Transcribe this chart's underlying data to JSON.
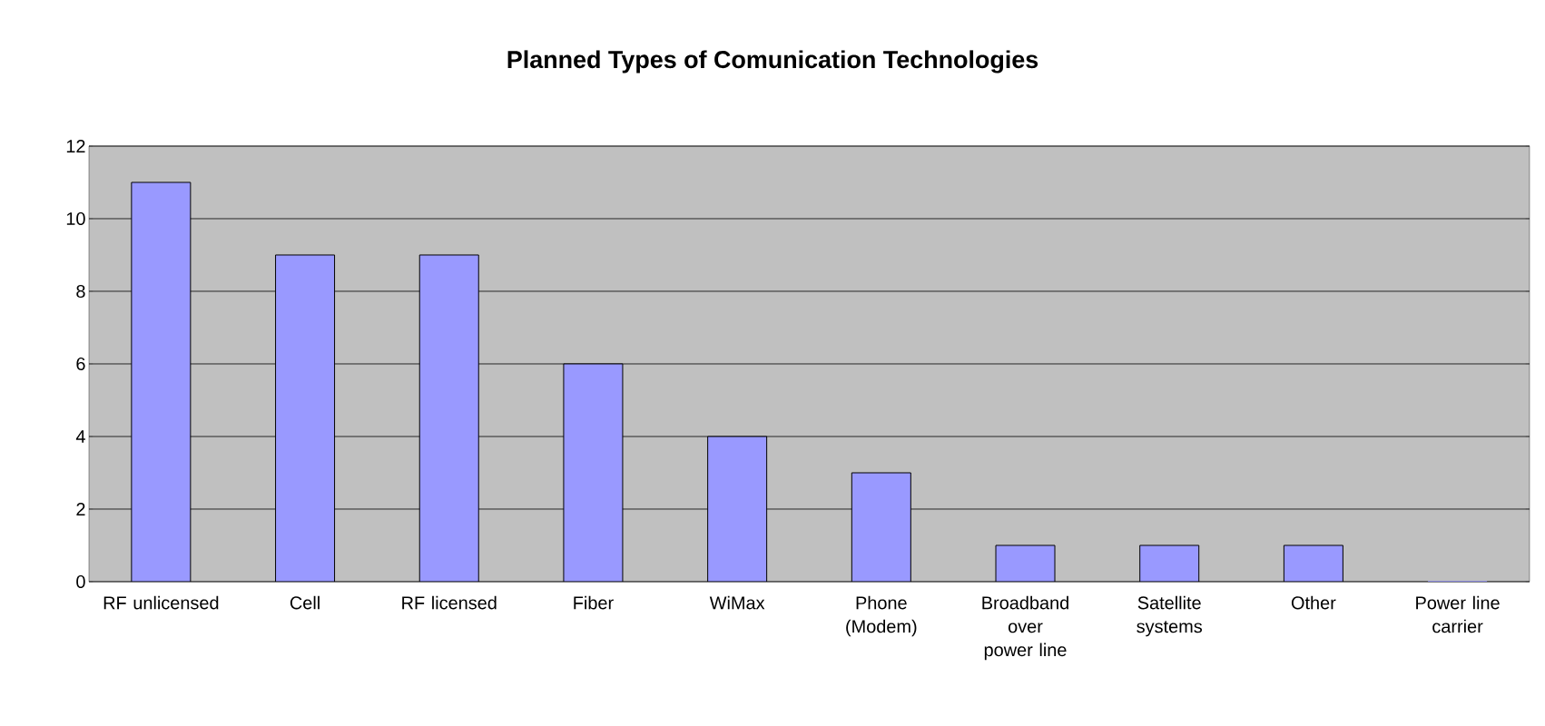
{
  "chart_data": {
    "type": "bar",
    "title": "Planned Types of Comunication Technologies",
    "categories": [
      "RF unlicensed",
      "Cell",
      "RF licensed",
      "Fiber",
      "WiMax",
      "Phone (Modem)",
      "Broadband over power line",
      "Satellite systems",
      "Other",
      "Power line carrier"
    ],
    "values": [
      11,
      9,
      9,
      6,
      4,
      3,
      1,
      1,
      1,
      0
    ],
    "color": "#9999ff",
    "ylim": [
      0,
      12
    ],
    "yticks": [
      0,
      2,
      4,
      6,
      8,
      10,
      12
    ],
    "grid": "y"
  }
}
